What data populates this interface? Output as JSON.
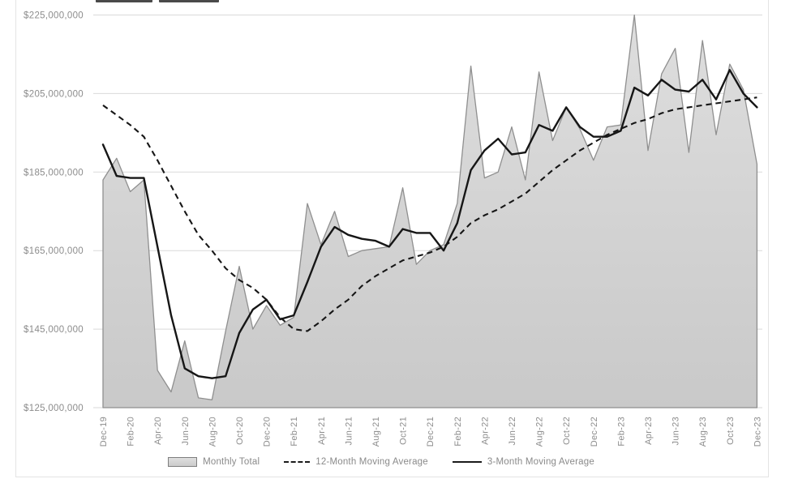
{
  "chart_data": {
    "type": "area",
    "subtype": "combo-area-with-moving-average-lines",
    "title": "",
    "xlabel": "",
    "ylabel": "",
    "values_unit": "USD",
    "ylim": [
      125000000,
      225000000
    ],
    "grid": "horizontal",
    "legend_position": "bottom",
    "y_ticks": [
      225,
      205,
      185,
      165,
      145,
      125
    ],
    "y_tick_labels": [
      "$225,000,000",
      "$205,000,000",
      "$185,000,000",
      "$165,000,000",
      "$145,000,000",
      "$125,000,000"
    ],
    "x_tick_labels": [
      "Dec-19",
      "Feb-20",
      "Apr-20",
      "Jun-20",
      "Aug-20",
      "Oct-20",
      "Dec-20",
      "Feb-21",
      "Apr-21",
      "Jun-21",
      "Aug-21",
      "Oct-21",
      "Dec-21",
      "Feb-22",
      "Apr-22",
      "Jun-22",
      "Aug-22",
      "Oct-22",
      "Dec-22",
      "Feb-23",
      "Apr-23",
      "Jun-23",
      "Aug-23",
      "Oct-23",
      "Dec-23"
    ],
    "categories": [
      "Dec-19",
      "Jan-20",
      "Feb-20",
      "Mar-20",
      "Apr-20",
      "May-20",
      "Jun-20",
      "Jul-20",
      "Aug-20",
      "Sep-20",
      "Oct-20",
      "Nov-20",
      "Dec-20",
      "Jan-21",
      "Feb-21",
      "Mar-21",
      "Apr-21",
      "May-21",
      "Jun-21",
      "Jul-21",
      "Aug-21",
      "Sep-21",
      "Oct-21",
      "Nov-21",
      "Dec-21",
      "Jan-22",
      "Feb-22",
      "Mar-22",
      "Apr-22",
      "May-22",
      "Jun-22",
      "Jul-22",
      "Aug-22",
      "Sep-22",
      "Oct-22",
      "Nov-22",
      "Dec-22",
      "Jan-23",
      "Feb-23",
      "Mar-23",
      "Apr-23",
      "May-23",
      "Jun-23",
      "Jul-23",
      "Aug-23",
      "Sep-23",
      "Oct-23",
      "Nov-23",
      "Dec-23"
    ],
    "series": [
      {
        "name": "Monthly Total",
        "type": "area",
        "values_millions": [
          183,
          188.5,
          180,
          183,
          134.5,
          129,
          142,
          127.5,
          127,
          144.5,
          161,
          145,
          151,
          146,
          148,
          177,
          166.5,
          175,
          163.5,
          165,
          165.5,
          166,
          181,
          161.5,
          165,
          166.5,
          177,
          212,
          183.5,
          185,
          196.5,
          183,
          210.5,
          193,
          201.5,
          196,
          188,
          196.5,
          197,
          225,
          190.5,
          210,
          216.5,
          190,
          218.5,
          194.5,
          212.5,
          206,
          187
        ]
      },
      {
        "name": "12-Month Moving Average",
        "type": "dashed-line",
        "values_millions": [
          202,
          199.5,
          197,
          194,
          188,
          181.5,
          175,
          169,
          165,
          160.5,
          157.5,
          155.5,
          152.5,
          148,
          145,
          144.5,
          147,
          150,
          152.5,
          156,
          158.5,
          160.5,
          162.5,
          163.5,
          164.5,
          166,
          168.5,
          172,
          174,
          175.5,
          177.5,
          179.5,
          182.5,
          185.5,
          188,
          190.5,
          192.5,
          194.5,
          196,
          197.5,
          198.5,
          200,
          201,
          201.5,
          202,
          202.5,
          203,
          203.5,
          204
        ]
      },
      {
        "name": "3-Month Moving Average",
        "type": "line",
        "values_millions": [
          192,
          184,
          183.5,
          183.5,
          166,
          148.5,
          135,
          133,
          132.5,
          133,
          144,
          150,
          152.5,
          147.5,
          148.5,
          157,
          166,
          171,
          169,
          168,
          167.5,
          166,
          170.5,
          169.5,
          169.5,
          165,
          172,
          185.5,
          190.5,
          193.5,
          189.5,
          190,
          197,
          195.5,
          201.5,
          196.5,
          194,
          194,
          195.5,
          206.5,
          204.5,
          208.5,
          206,
          205.5,
          208.5,
          203.5,
          211,
          205,
          201.5
        ]
      }
    ]
  },
  "colors": {
    "area_fill_top": "#dedede",
    "area_fill_bottom": "#c9c9c9",
    "area_outline": "#8f8f8f",
    "line_color": "#161616",
    "gridline": "#d9d9d9",
    "axis_label": "#8c8c8c",
    "legend_text": "#8a8a8a"
  },
  "legend": {
    "items": [
      {
        "label": "Monthly Total",
        "swatch": "area-swatch"
      },
      {
        "label": "12-Month Moving Average",
        "swatch": "dashed-line-swatch"
      },
      {
        "label": "3-Month Moving Average",
        "swatch": "solid-line-swatch"
      }
    ]
  }
}
